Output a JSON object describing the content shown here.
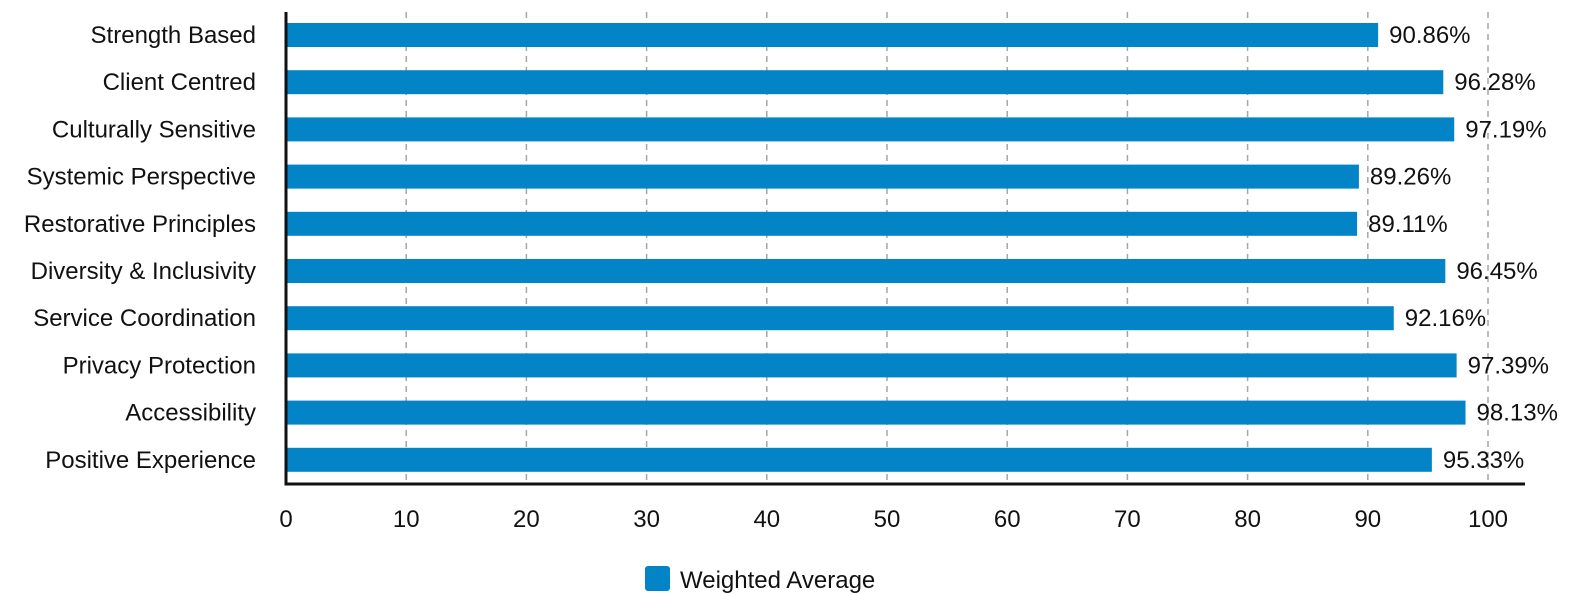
{
  "chart_data": {
    "type": "bar",
    "orientation": "horizontal",
    "categories": [
      "Strength Based",
      "Client Centred",
      "Culturally Sensitive",
      "Systemic Perspective",
      "Restorative Principles",
      "Diversity & Inclusivity",
      "Service Coordination",
      "Privacy Protection",
      "Accessibility",
      "Positive Experience"
    ],
    "series": [
      {
        "name": "Weighted Average",
        "color": "#0284c7",
        "values": [
          90.86,
          96.28,
          97.19,
          89.26,
          89.11,
          96.45,
          92.16,
          97.39,
          98.13,
          95.33
        ],
        "labels": [
          "90.86%",
          "96.28%",
          "97.19%",
          "89.26%",
          "89.11%",
          "96.45%",
          "92.16%",
          "97.39%",
          "98.13%",
          "95.33%"
        ]
      }
    ],
    "xlim": [
      0,
      100
    ],
    "xticks": [
      0,
      10,
      20,
      30,
      40,
      50,
      60,
      70,
      80,
      90,
      100
    ],
    "grid": true,
    "legend_position": "bottom-center"
  }
}
